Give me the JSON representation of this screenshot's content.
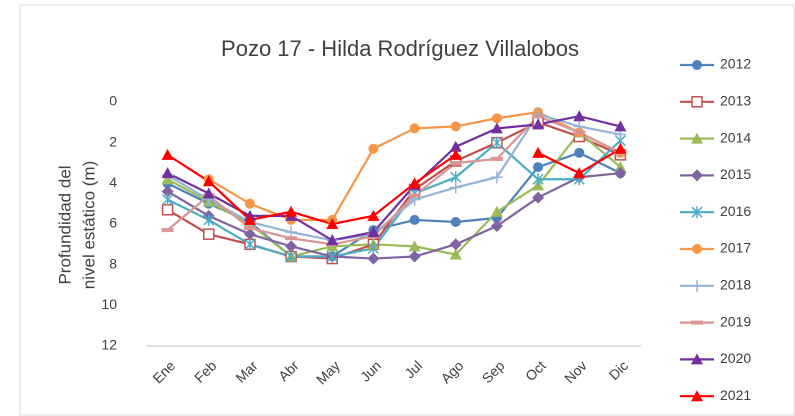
{
  "chart_data": {
    "type": "line",
    "title": "Pozo 17 - Hilda Rodríguez Villalobos",
    "ylabel": [
      "Profundidad del",
      "nivel estático (m)"
    ],
    "categories": [
      "Ene",
      "Feb",
      "Mar",
      "Abr",
      "May",
      "Jun",
      "Jul",
      "Ago",
      "Sep",
      "Oct",
      "Nov",
      "Dic"
    ],
    "ylim": [
      0,
      12
    ],
    "yticks": [
      0,
      2,
      4,
      6,
      8,
      10,
      12
    ],
    "y_inverted": true,
    "grid": false,
    "legend": "right",
    "series": [
      {
        "name": "2012",
        "color": "#4f81bd",
        "marker": "circle",
        "values": [
          4.0,
          5.0,
          5.9,
          7.6,
          7.6,
          6.3,
          5.8,
          5.9,
          5.7,
          3.2,
          2.5,
          3.5
        ]
      },
      {
        "name": "2013",
        "color": "#c0504d",
        "marker": "square",
        "values": [
          5.3,
          6.5,
          7.0,
          7.6,
          7.7,
          7.0,
          4.3,
          2.9,
          2.0,
          1.0,
          1.7,
          2.6
        ]
      },
      {
        "name": "2014",
        "color": "#9bbb59",
        "marker": "triangle",
        "values": [
          3.8,
          4.9,
          6.0,
          7.6,
          7.1,
          7.0,
          7.1,
          7.5,
          5.4,
          4.1,
          1.5,
          3.2
        ]
      },
      {
        "name": "2015",
        "color": "#8064a2",
        "marker": "diamond",
        "values": [
          4.4,
          5.6,
          6.5,
          7.1,
          7.6,
          7.7,
          7.6,
          7.0,
          6.1,
          4.7,
          3.7,
          3.5
        ]
      },
      {
        "name": "2016",
        "color": "#4bacc6",
        "marker": "star",
        "values": [
          4.8,
          5.8,
          7.0,
          7.6,
          7.6,
          7.2,
          4.5,
          3.7,
          2.0,
          3.8,
          3.8,
          1.9
        ]
      },
      {
        "name": "2017",
        "color": "#f79646",
        "marker": "circle",
        "values": [
          null,
          3.8,
          5.0,
          5.8,
          5.8,
          2.3,
          1.3,
          1.2,
          0.8,
          0.5,
          1.5,
          2.5
        ]
      },
      {
        "name": "2018",
        "color": "#95b3d7",
        "marker": "plus",
        "values": [
          3.6,
          4.8,
          5.9,
          6.4,
          6.8,
          6.5,
          4.8,
          4.2,
          3.7,
          0.6,
          1.2,
          1.6
        ]
      },
      {
        "name": "2019",
        "color": "#d99694",
        "marker": "dash",
        "values": [
          6.3,
          4.6,
          6.2,
          6.7,
          7.0,
          6.6,
          4.6,
          3.0,
          2.8,
          0.7,
          1.5,
          2.5
        ]
      },
      {
        "name": "2020",
        "color": "#7030a0",
        "marker": "triangle",
        "values": [
          3.5,
          4.5,
          5.6,
          5.6,
          6.8,
          6.4,
          4.1,
          2.2,
          1.3,
          1.1,
          0.7,
          1.2
        ]
      },
      {
        "name": "2021",
        "color": "#ff0000",
        "marker": "triangle",
        "values": [
          2.6,
          3.9,
          5.8,
          5.4,
          6.0,
          5.6,
          4.0,
          2.6,
          null,
          2.5,
          3.5,
          2.3
        ]
      }
    ]
  }
}
